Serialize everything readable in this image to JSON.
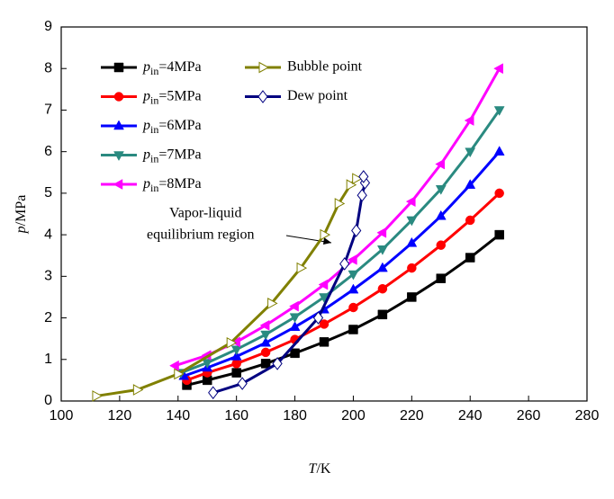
{
  "chart_data": {
    "type": "line",
    "xlabel": "T/K",
    "ylabel": "p/MPa",
    "xlim": [
      100,
      280
    ],
    "xticks": [
      100,
      120,
      140,
      160,
      180,
      200,
      220,
      240,
      260,
      280
    ],
    "ylim": [
      0,
      9
    ],
    "yticks": [
      0,
      1,
      2,
      3,
      4,
      5,
      6,
      7,
      8,
      9
    ],
    "annotation": [
      "Vapor-liquid",
      "equilibrium region"
    ],
    "series": [
      {
        "name": "pin=4MPa",
        "color": "#000000",
        "marker": "square",
        "x": [
          143,
          150,
          160,
          170,
          180,
          190,
          200,
          210,
          220,
          230,
          240,
          250
        ],
        "values": [
          0.38,
          0.5,
          0.68,
          0.9,
          1.15,
          1.42,
          1.72,
          2.08,
          2.5,
          2.95,
          3.45,
          4.0
        ]
      },
      {
        "name": "pin=5MPa",
        "color": "#ff0000",
        "marker": "circle",
        "x": [
          143,
          150,
          160,
          170,
          180,
          190,
          200,
          210,
          220,
          230,
          240,
          250
        ],
        "values": [
          0.5,
          0.68,
          0.9,
          1.17,
          1.48,
          1.85,
          2.25,
          2.7,
          3.2,
          3.75,
          4.35,
          5.0
        ]
      },
      {
        "name": "pin=6MPa",
        "color": "#0000ff",
        "marker": "triangle-up",
        "x": [
          142,
          150,
          160,
          170,
          180,
          190,
          200,
          210,
          220,
          230,
          240,
          250
        ],
        "values": [
          0.6,
          0.8,
          1.07,
          1.4,
          1.78,
          2.2,
          2.68,
          3.2,
          3.8,
          4.45,
          5.2,
          6.0
        ]
      },
      {
        "name": "pin=7MPa",
        "color": "#2a8a80",
        "marker": "triangle-down",
        "x": [
          141,
          150,
          160,
          170,
          180,
          190,
          200,
          210,
          220,
          230,
          240,
          250
        ],
        "values": [
          0.68,
          0.92,
          1.24,
          1.6,
          2.02,
          2.5,
          3.05,
          3.65,
          4.35,
          5.1,
          6.0,
          7.0
        ]
      },
      {
        "name": "pin=8MPa",
        "color": "#ff00ff",
        "marker": "triangle-left",
        "x": [
          139,
          150,
          160,
          170,
          180,
          190,
          200,
          210,
          220,
          230,
          240,
          250
        ],
        "values": [
          0.85,
          1.1,
          1.42,
          1.82,
          2.28,
          2.8,
          3.4,
          4.05,
          4.8,
          5.7,
          6.75,
          8.0
        ]
      },
      {
        "name": "Bubble point",
        "color": "#808000",
        "marker": "open-triangle-right",
        "x": [
          112,
          126,
          140,
          158,
          172,
          182,
          190,
          195,
          199,
          201
        ],
        "values": [
          0.12,
          0.27,
          0.65,
          1.4,
          2.35,
          3.2,
          4.0,
          4.75,
          5.2,
          5.35
        ]
      },
      {
        "name": "Dew point",
        "color": "#000080",
        "marker": "open-diamond",
        "x": [
          152,
          162,
          174,
          188,
          197,
          201,
          203,
          204,
          203.5
        ],
        "values": [
          0.2,
          0.42,
          0.9,
          2.0,
          3.3,
          4.1,
          4.95,
          5.25,
          5.4
        ]
      }
    ]
  }
}
